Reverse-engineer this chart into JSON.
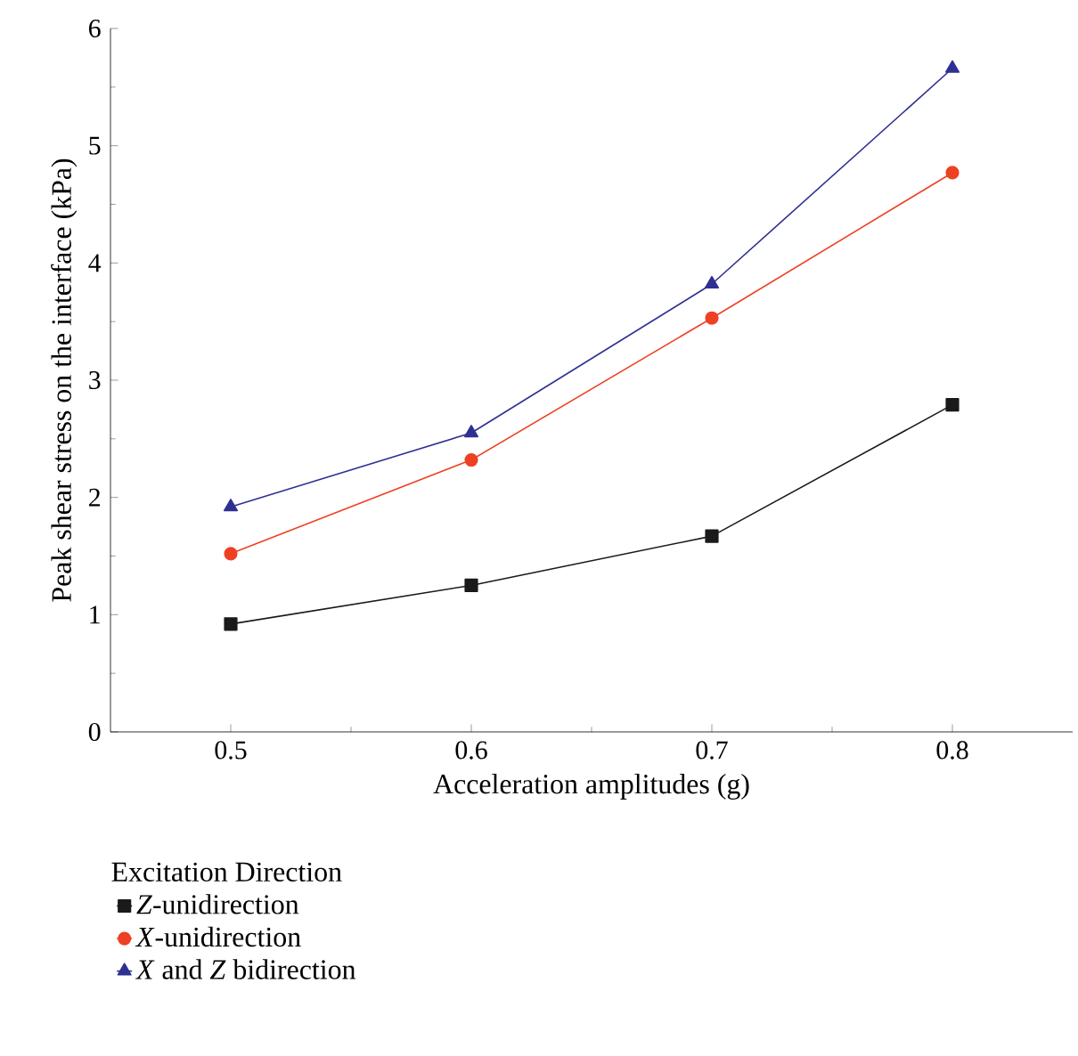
{
  "chart_data": {
    "type": "line",
    "xlabel": "Acceleration amplitudes (g)",
    "ylabel": "Peak shear stress on the interface (kPa)",
    "legend_title": "Excitation Direction",
    "x": [
      0.5,
      0.6,
      0.7,
      0.8
    ],
    "series": [
      {
        "name": "*Z*-unidirection",
        "color": "#1a1a1a",
        "marker": "square",
        "values": [
          0.92,
          1.25,
          1.67,
          2.79
        ]
      },
      {
        "name": "*X*-unidirection",
        "color": "#ee4123",
        "marker": "circle",
        "values": [
          1.52,
          2.32,
          3.53,
          4.77
        ]
      },
      {
        "name": "*X* and *Z* bidirection",
        "color": "#2e3192",
        "marker": "triangle",
        "values": [
          1.92,
          2.55,
          3.82,
          5.66
        ]
      }
    ],
    "xlim": [
      0.45,
      0.85
    ],
    "ylim": [
      0,
      6
    ],
    "xticks": [
      0.5,
      0.6,
      0.7,
      0.8
    ],
    "yticks": [
      0,
      1,
      2,
      3,
      4,
      5,
      6
    ],
    "legend": "bottom",
    "grid": false,
    "line_style": "solid"
  }
}
